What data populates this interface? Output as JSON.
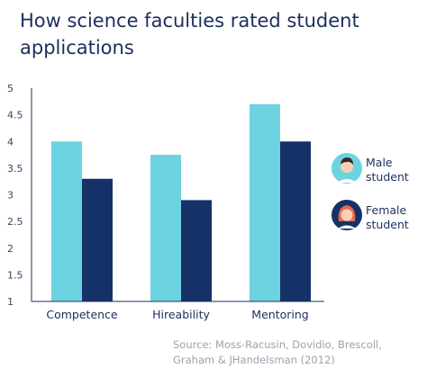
{
  "title": "How science faculties rated student applications",
  "source": "Source: Moss-Racusin, Dovidio, Brescoll, Graham & JHandelsman (2012)",
  "colors": {
    "male": "#6dd3e0",
    "female": "#153268",
    "axis": "#1b2f5c",
    "title": "#1b2f5c"
  },
  "legend": [
    {
      "label_line1": "Male",
      "label_line2": "student",
      "icon": "male-student-avatar-icon"
    },
    {
      "label_line1": "Female",
      "label_line2": "student",
      "icon": "female-student-avatar-icon"
    }
  ],
  "chart_data": {
    "type": "bar",
    "categories": [
      "Competence",
      "Hireability",
      "Mentoring"
    ],
    "series": [
      {
        "name": "Male student",
        "values": [
          4.0,
          3.75,
          4.7
        ]
      },
      {
        "name": "Female student",
        "values": [
          3.3,
          2.9,
          4.0
        ]
      }
    ],
    "yticks": [
      "1",
      "1.5",
      "2",
      "2.5",
      "3",
      "3.5",
      "4",
      "4.5",
      "5"
    ],
    "ylim": [
      1,
      5
    ],
    "legend_position": "right",
    "grid": false
  }
}
